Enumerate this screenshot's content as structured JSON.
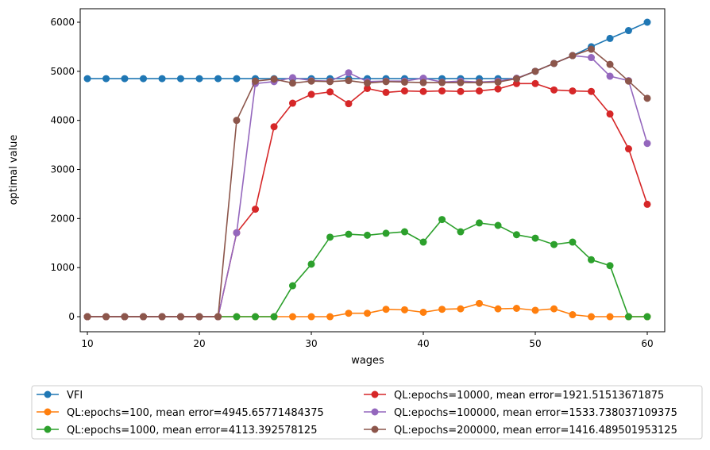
{
  "chart_data": {
    "type": "line",
    "title": "",
    "xlabel": "wages",
    "ylabel": "optimal value",
    "xlim": [
      9.36,
      61.56
    ],
    "ylim": [
      -307,
      6275
    ],
    "xticks": [
      10,
      20,
      30,
      40,
      50,
      60
    ],
    "yticks": [
      0,
      1000,
      2000,
      3000,
      4000,
      5000,
      6000
    ],
    "grid": false,
    "legend_position": "below",
    "x": [
      10,
      11.67,
      13.33,
      15,
      16.67,
      18.33,
      20,
      21.67,
      23.33,
      25,
      26.67,
      28.33,
      30,
      31.67,
      33.33,
      35,
      36.67,
      38.33,
      40,
      41.67,
      43.33,
      45,
      46.67,
      48.33,
      50,
      51.67,
      53.33,
      55,
      56.67,
      58.33,
      60
    ],
    "series": [
      {
        "name": "VFI",
        "color": "#1f77b4",
        "values": [
          4850,
          4850,
          4850,
          4850,
          4850,
          4850,
          4850,
          4850,
          4850,
          4850,
          4850,
          4850,
          4850,
          4850,
          4850,
          4850,
          4850,
          4850,
          4850,
          4850,
          4850,
          4850,
          4850,
          4850,
          5000,
          5160,
          5320,
          5500,
          5670,
          5830,
          6000
        ]
      },
      {
        "name": "QL:epochs=100, mean error=4945.65771484375",
        "color": "#ff7f0e",
        "values": [
          0,
          0,
          0,
          0,
          0,
          0,
          0,
          0,
          0,
          0,
          0,
          0,
          0,
          0,
          70,
          70,
          150,
          140,
          90,
          150,
          160,
          270,
          160,
          170,
          130,
          160,
          40,
          0,
          0,
          0,
          0
        ]
      },
      {
        "name": "QL:epochs=1000, mean error=4113.392578125",
        "color": "#2ca02c",
        "values": [
          0,
          0,
          0,
          0,
          0,
          0,
          0,
          0,
          0,
          0,
          0,
          630,
          1070,
          1620,
          1680,
          1660,
          1700,
          1730,
          1520,
          1980,
          1730,
          1910,
          1860,
          1670,
          1600,
          1470,
          1520,
          1160,
          1040,
          0,
          0
        ]
      },
      {
        "name": "QL:epochs=10000, mean error=1921.51513671875",
        "color": "#d62728",
        "values": [
          0,
          0,
          0,
          0,
          0,
          0,
          0,
          0,
          1710,
          2190,
          3870,
          4350,
          4530,
          4580,
          4340,
          4650,
          4570,
          4600,
          4590,
          4600,
          4590,
          4600,
          4640,
          4750,
          4750,
          4620,
          4600,
          4590,
          4130,
          3420,
          2290
        ]
      },
      {
        "name": "QL:epochs=100000, mean error=1533.738037109375",
        "color": "#9467bd",
        "values": [
          0,
          0,
          0,
          0,
          0,
          0,
          0,
          0,
          1710,
          4750,
          4790,
          4870,
          4810,
          4800,
          4970,
          4790,
          4800,
          4800,
          4860,
          4780,
          4800,
          4780,
          4800,
          4860,
          5000,
          5160,
          5320,
          5280,
          4900,
          4810,
          3530
        ]
      },
      {
        "name": "QL:epochs=200000, mean error=1416.489501953125",
        "color": "#8c564b",
        "values": [
          0,
          0,
          0,
          0,
          0,
          0,
          0,
          0,
          4000,
          4800,
          4840,
          4760,
          4800,
          4790,
          4810,
          4760,
          4790,
          4780,
          4770,
          4770,
          4770,
          4770,
          4780,
          4850,
          5000,
          5160,
          5320,
          5450,
          5140,
          4800,
          4450
        ]
      }
    ]
  }
}
